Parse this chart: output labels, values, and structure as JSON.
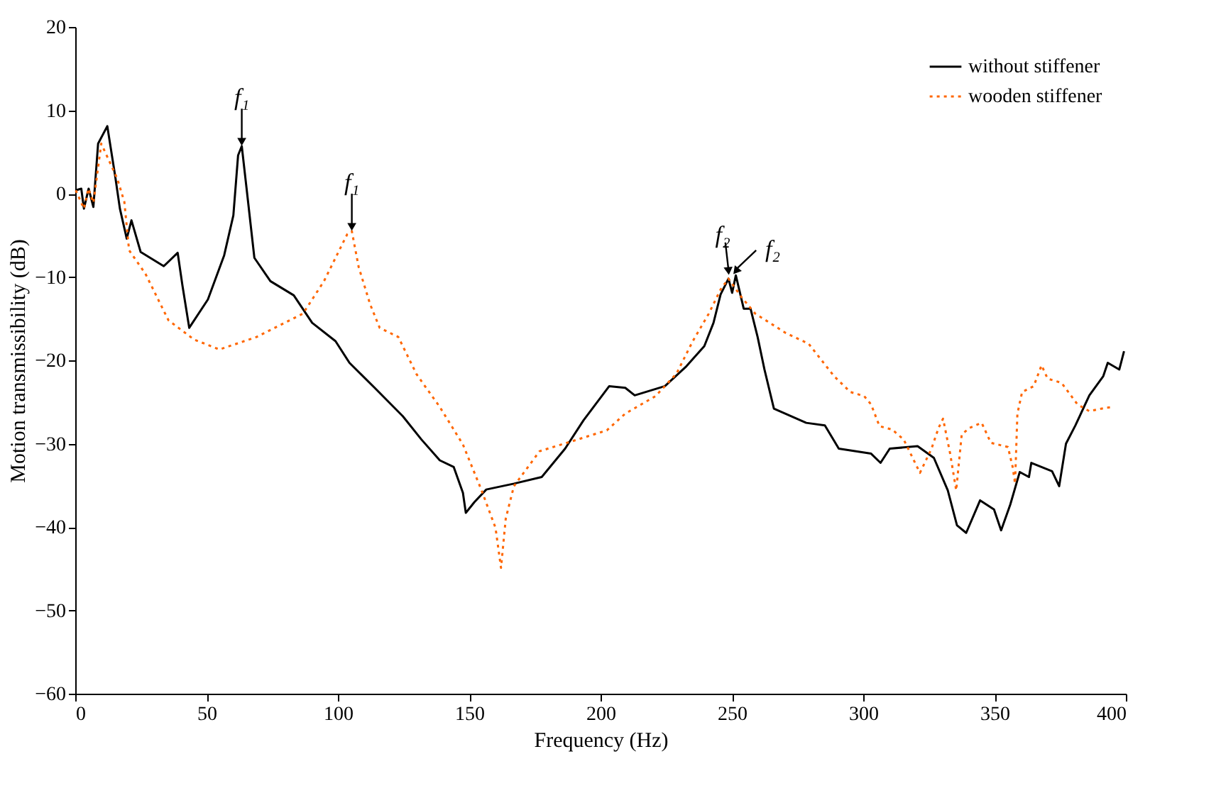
{
  "chart_data": {
    "type": "line",
    "xlabel": "Frequency (Hz)",
    "ylabel": "Motion transmissibility (dB)",
    "xlim": [
      0,
      400
    ],
    "xticks": [
      0,
      50,
      100,
      150,
      200,
      250,
      300,
      350,
      400
    ],
    "ylim": [
      -60,
      20
    ],
    "yticks": [
      -60,
      -50,
      -40,
      -30,
      -20,
      -10,
      0,
      10,
      20
    ],
    "grid": false,
    "legend": "top right",
    "marker": "none",
    "series": [
      {
        "name": "without stiffener",
        "color": "#000000",
        "line_style": "solid",
        "x": [
          0.2,
          2.3,
          3.3,
          5.1,
          6.9,
          8.7,
          12.2,
          15.2,
          17,
          19.6,
          21.4,
          24.9,
          33.7,
          39,
          40.8,
          43.4,
          50.5,
          56.7,
          60.2,
          62,
          63.4,
          65.2,
          68.2,
          74.3,
          83.2,
          90.2,
          99.1,
          104.4,
          114,
          124.7,
          131.8,
          138.8,
          144.1,
          147.6,
          148.7,
          152,
          156.5,
          167,
          177.6,
          186.5,
          193.5,
          203.3,
          209.4,
          213,
          224.5,
          232.4,
          239.5,
          243,
          245.7,
          248.7,
          250.1,
          251.5,
          254.5,
          257.1,
          259.8,
          262.4,
          266,
          278.3,
          285.4,
          290.7,
          303,
          306.6,
          310.1,
          320.7,
          326.9,
          332.2,
          335.7,
          339.2,
          344.5,
          349.8,
          352.5,
          356,
          359.6,
          363.1,
          364,
          371.9,
          374.6,
          377.2,
          380.8,
          386.1,
          391.4,
          393.1,
          397.5,
          399.3
        ],
        "values": [
          0.4,
          0.6,
          -1.8,
          0.6,
          -1.6,
          6.0,
          8.1,
          2.1,
          -1.8,
          -5.4,
          -3.2,
          -7.0,
          -8.7,
          -7.1,
          -11,
          -16.1,
          -12.7,
          -7.4,
          -2.6,
          4.6,
          5.7,
          0.7,
          -7.7,
          -10.5,
          -12.2,
          -15.5,
          -17.7,
          -20.3,
          -23.3,
          -26.7,
          -29.5,
          -32,
          -32.8,
          -35.9,
          -38.3,
          -37,
          -35.5,
          -34.8,
          -34,
          -30.6,
          -27.2,
          -23.1,
          -23.3,
          -24.2,
          -23.1,
          -20.8,
          -18.3,
          -15.5,
          -12.1,
          -10.2,
          -11.9,
          -9.8,
          -13.8,
          -13.8,
          -17.2,
          -21.1,
          -25.8,
          -27.5,
          -27.8,
          -30.6,
          -31.2,
          -32.3,
          -30.6,
          -30.3,
          -31.7,
          -35.6,
          -39.8,
          -40.7,
          -36.8,
          -37.9,
          -40.4,
          -37.3,
          -33.4,
          -34,
          -32.3,
          -33.3,
          -35.1,
          -30,
          -27.8,
          -24.2,
          -21.9,
          -20.3,
          -21.1,
          -18.9
        ]
      },
      {
        "name": "wooden stiffener",
        "color": "#ff6600",
        "line_style": "dotted",
        "x": [
          0.2,
          3.3,
          5,
          6.9,
          9.9,
          16,
          18.7,
          20.5,
          26.7,
          35.5,
          45.2,
          54.9,
          69,
          86.7,
          94.7,
          103.5,
          105.3,
          107.9,
          112.3,
          115.9,
          123,
          130,
          138.8,
          147.6,
          154.7,
          160,
          162.1,
          163.9,
          167,
          176.8,
          188.2,
          202.4,
          209.4,
          220.9,
          228.9,
          235.1,
          241.2,
          245.7,
          248.7,
          253.6,
          258.9,
          270.4,
          279.2,
          288.9,
          295.1,
          300.4,
          303,
          306.2,
          311,
          315.4,
          321.6,
          326,
          328.7,
          330.4,
          333.1,
          335.4,
          337.5,
          340.5,
          345.1,
          348.6,
          355.1,
          356.9,
          357.8,
          358.7,
          360.5,
          364.9,
          367.9,
          370.2,
          375.5,
          381.6,
          386.1,
          392.2,
          395.4
        ],
        "values": [
          0.4,
          -1.8,
          0.6,
          -1.1,
          6,
          1.8,
          -1,
          -6.8,
          -9.6,
          -15.2,
          -17.5,
          -18.7,
          -17.2,
          -14.4,
          -10.5,
          -4.9,
          -4.5,
          -8.8,
          -13.3,
          -16.1,
          -17.2,
          -21.7,
          -25.6,
          -30.1,
          -35.6,
          -40.1,
          -44.9,
          -39,
          -35.1,
          -30.9,
          -29.8,
          -28.4,
          -26.4,
          -24.3,
          -21.6,
          -17.7,
          -14.4,
          -11.5,
          -10.2,
          -12.4,
          -14.4,
          -16.7,
          -18,
          -21.9,
          -23.8,
          -24.3,
          -25.3,
          -27.9,
          -28.3,
          -29.5,
          -33.5,
          -30.6,
          -28.1,
          -27,
          -31.2,
          -35.6,
          -28.9,
          -28.1,
          -27.5,
          -29.9,
          -30.4,
          -32.8,
          -34.8,
          -26.4,
          -23.8,
          -23.1,
          -20.6,
          -22.2,
          -22.7,
          -25.3,
          -26.1,
          -25.7,
          -25.6
        ]
      }
    ],
    "annotations": [
      {
        "text": "f₁",
        "x": 63.4,
        "y": 5.7
      },
      {
        "text": "f₁",
        "x": 105.3,
        "y": -4.5
      },
      {
        "text": "f₂",
        "x": 248.7,
        "y": -9.8
      },
      {
        "text": "f₂",
        "x": 251.5,
        "y": -9.8
      }
    ]
  }
}
